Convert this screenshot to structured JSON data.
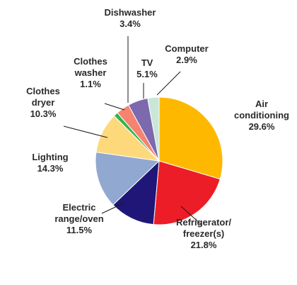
{
  "chart_data": {
    "type": "pie",
    "slices": [
      {
        "key": "air-conditioning",
        "label_lines": [
          "Air",
          "conditioning"
        ],
        "value_text": "29.6%",
        "value": 29.6,
        "color": "#ffb800"
      },
      {
        "key": "refrigerator-freezer",
        "label_lines": [
          "Refrigerator/",
          "freezer(s)"
        ],
        "value_text": "21.8%",
        "value": 21.8,
        "color": "#ec1d27"
      },
      {
        "key": "electric-range-oven",
        "label_lines": [
          "Electric",
          "range/oven"
        ],
        "value_text": "11.5%",
        "value": 11.5,
        "color": "#1f1678"
      },
      {
        "key": "lighting",
        "label_lines": [
          "Lighting"
        ],
        "value_text": "14.3%",
        "value": 14.3,
        "color": "#91a8d1"
      },
      {
        "key": "clothes-dryer",
        "label_lines": [
          "Clothes",
          "dryer"
        ],
        "value_text": "10.3%",
        "value": 10.3,
        "color": "#fed97b"
      },
      {
        "key": "clothes-washer",
        "label_lines": [
          "Clothes",
          "washer"
        ],
        "value_text": "1.1%",
        "value": 1.1,
        "color": "#2eb34b"
      },
      {
        "key": "dishwasher",
        "label_lines": [
          "Dishwasher"
        ],
        "value_text": "3.4%",
        "value": 3.4,
        "color": "#f5836f"
      },
      {
        "key": "tv",
        "label_lines": [
          "TV"
        ],
        "value_text": "5.1%",
        "value": 5.1,
        "color": "#7d69ae"
      },
      {
        "key": "computer",
        "label_lines": [
          "Computer"
        ],
        "value_text": "2.9%",
        "value": 2.9,
        "color": "#c8e7d6"
      }
    ]
  }
}
